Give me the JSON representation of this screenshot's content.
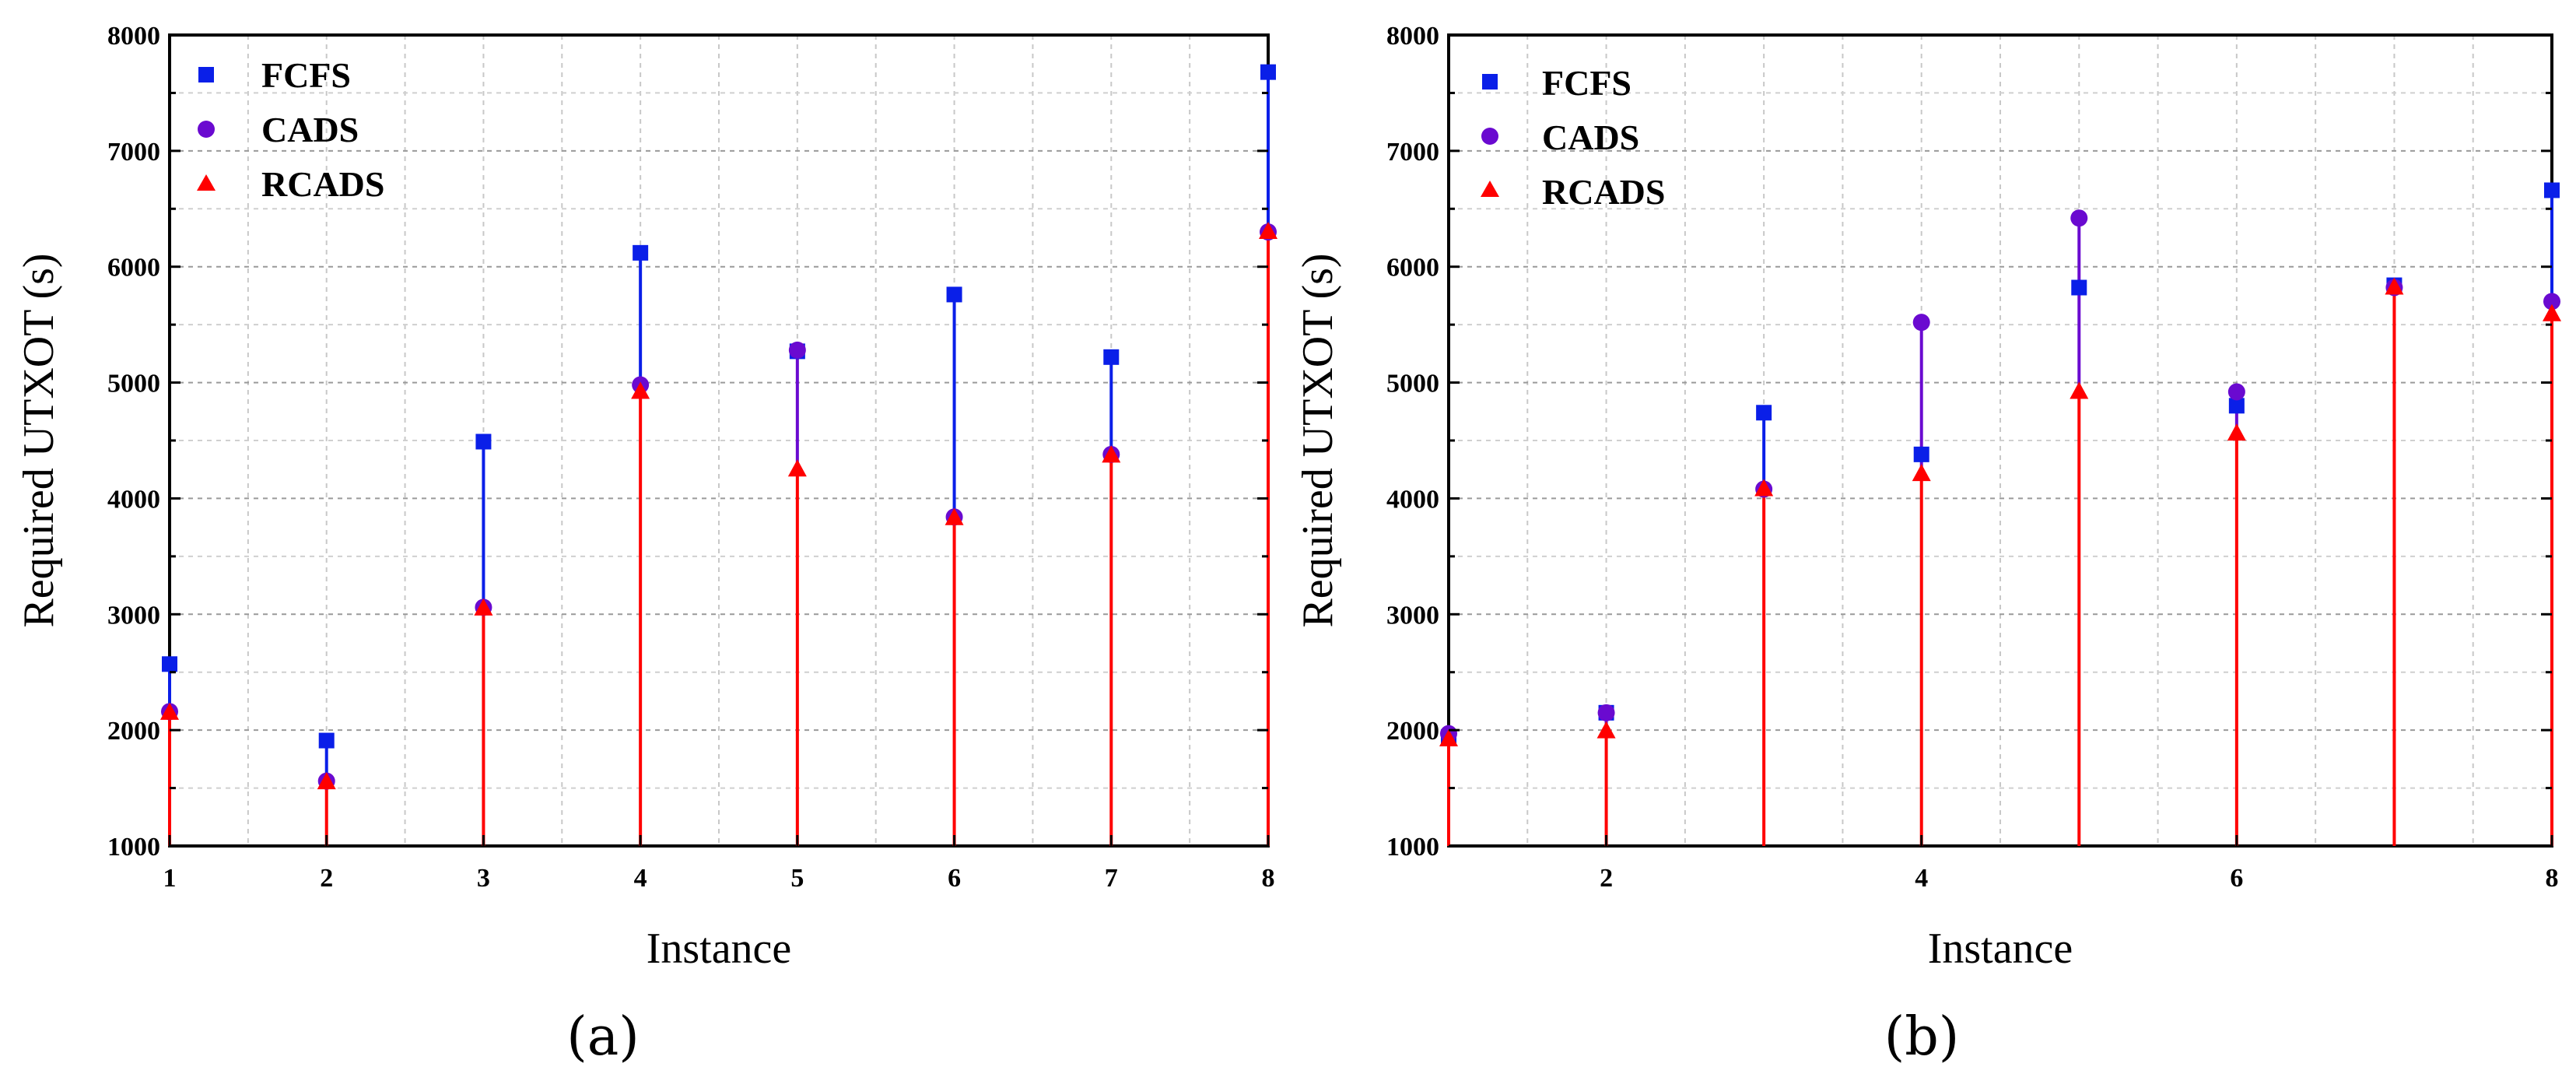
{
  "colors": {
    "fcfs": "#0a1fe8",
    "cads": "#6a0ad0",
    "rcads": "#ff0000"
  },
  "chart_data": [
    {
      "type": "scatter",
      "subcaption": "(a)",
      "xlabel": "Instance",
      "ylabel": "Required UTXOT (s)",
      "x_ticks": [
        "1",
        "2",
        "3",
        "4",
        "5",
        "6",
        "7",
        "8"
      ],
      "y_ticks": [
        "1000",
        "2000",
        "3000",
        "4000",
        "5000",
        "6000",
        "7000",
        "8000"
      ],
      "xlim": [
        1,
        8
      ],
      "ylim": [
        1000,
        8000
      ],
      "legend": {
        "position": "top-left",
        "entries": [
          "FCFS",
          "CADS",
          "RCADS"
        ]
      },
      "x": [
        1,
        2,
        3,
        4,
        5,
        6,
        7,
        8
      ],
      "series": [
        {
          "name": "FCFS",
          "values": [
            2570,
            1910,
            4490,
            6120,
            5270,
            5760,
            5220,
            7680
          ]
        },
        {
          "name": "CADS",
          "values": [
            2160,
            1560,
            3060,
            4980,
            5280,
            3840,
            4380,
            6300
          ]
        },
        {
          "name": "RCADS",
          "values": [
            2150,
            1550,
            3050,
            4920,
            4250,
            3830,
            4370,
            6300
          ]
        }
      ]
    },
    {
      "type": "scatter",
      "subcaption": "(b)",
      "xlabel": "Instance",
      "ylabel": "Required UTXOT (s)",
      "x_ticks": [
        "2",
        "4",
        "6",
        "8"
      ],
      "y_ticks": [
        "1000",
        "2000",
        "3000",
        "4000",
        "5000",
        "6000",
        "7000",
        "8000"
      ],
      "xlim": [
        1,
        8
      ],
      "ylim": [
        1000,
        8000
      ],
      "legend": {
        "position": "top-left",
        "entries": [
          "FCFS",
          "CADS",
          "RCADS"
        ]
      },
      "x": [
        1,
        2,
        3,
        4,
        5,
        6,
        7,
        8
      ],
      "series": [
        {
          "name": "FCFS",
          "values": [
            1940,
            2150,
            4740,
            4380,
            5820,
            4800,
            5840,
            6660
          ]
        },
        {
          "name": "CADS",
          "values": [
            1970,
            2150,
            4080,
            5520,
            6420,
            4920,
            5820,
            5700
          ]
        },
        {
          "name": "RCADS",
          "values": [
            1920,
            1990,
            4080,
            4210,
            4920,
            4560,
            5820,
            5590
          ]
        }
      ]
    }
  ]
}
